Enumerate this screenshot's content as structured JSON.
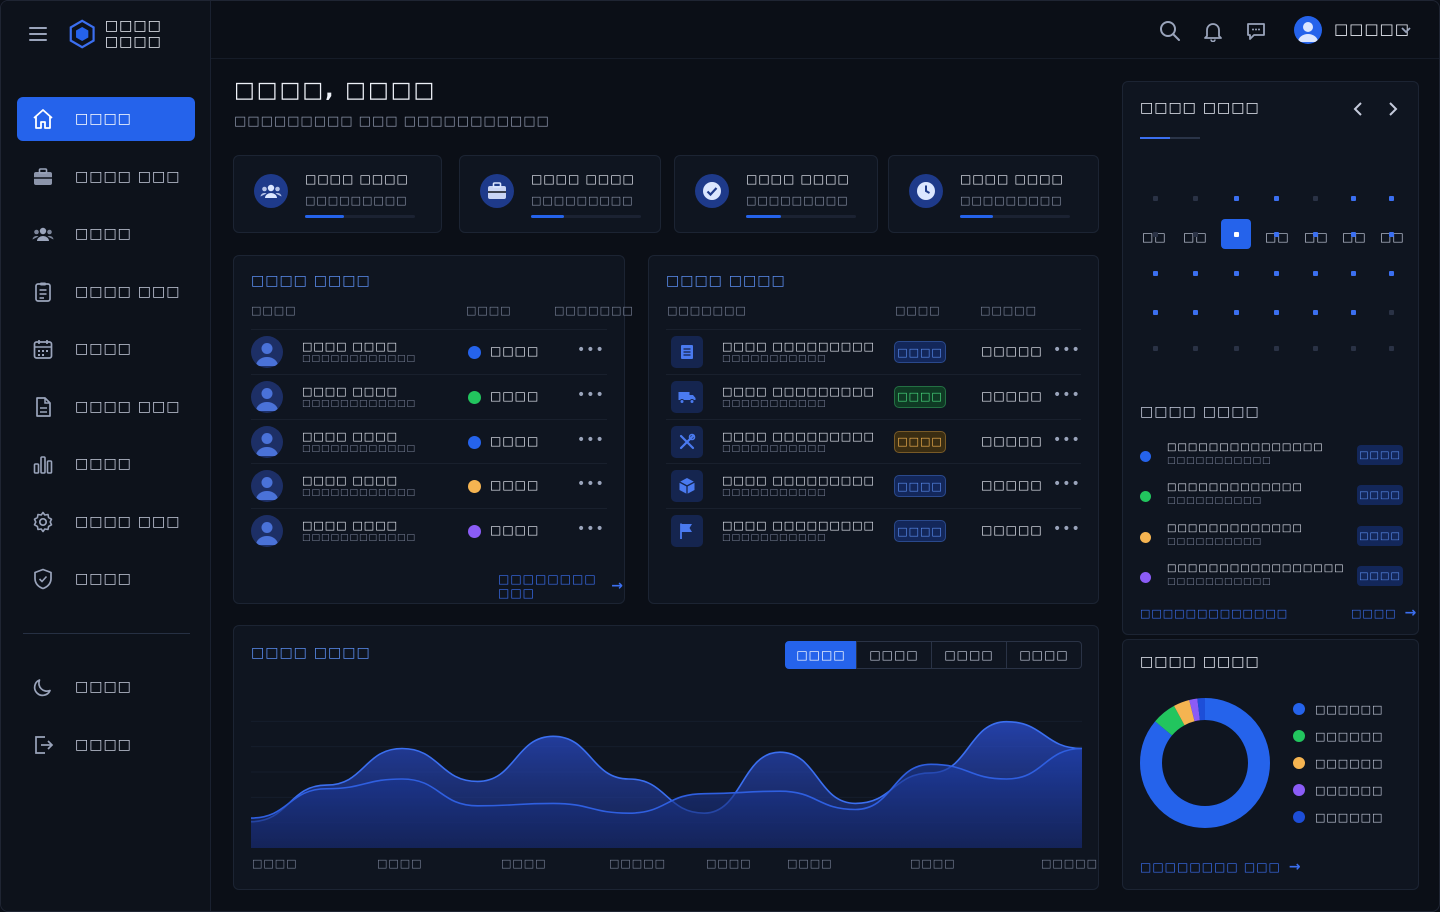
{
  "brand": {
    "name": "□□□□ □□□□"
  },
  "header": {
    "user_name": "□□□□□"
  },
  "nav": {
    "items": [
      {
        "label": "□□□□",
        "icon": "home-icon"
      },
      {
        "label": "□□□□ □□□",
        "icon": "briefcase-icon"
      },
      {
        "label": "□□□□",
        "icon": "users-icon"
      },
      {
        "label": "□□□□ □□□",
        "icon": "clipboard-icon"
      },
      {
        "label": "□□□□",
        "icon": "calendar-icon"
      },
      {
        "label": "□□□□ □□□",
        "icon": "document-icon"
      },
      {
        "label": "□□□□",
        "icon": "bar-chart-icon"
      },
      {
        "label": "□□□□ □□□",
        "icon": "gear-icon"
      },
      {
        "label": "□□□□",
        "icon": "shield-icon"
      }
    ],
    "bottom": [
      {
        "label": "□□□□",
        "icon": "moon-icon"
      },
      {
        "label": "□□□□",
        "icon": "logout-icon"
      }
    ]
  },
  "page": {
    "title": "□□□□, □□□□",
    "subtitle": "□□□□□□□□□ □□□ □□□□□□□□□□□"
  },
  "stats": [
    {
      "title": "□□□□ □□□□",
      "value": "□□□□□□□□□",
      "progress": 0.35,
      "icon": "users-icon"
    },
    {
      "title": "□□□□ □□□□",
      "value": "□□□□□□□□□",
      "progress": 0.3,
      "icon": "briefcase-icon"
    },
    {
      "title": "□□□□ □□□□",
      "value": "□□□□□□□□□",
      "progress": 0.32,
      "icon": "check-circle-icon"
    },
    {
      "title": "□□□□ □□□□",
      "value": "□□□□□□□□□",
      "progress": 0.3,
      "icon": "clock-icon"
    }
  ],
  "team": {
    "title": "□□□□ □□□□",
    "columns": [
      "□□□□",
      "□□□□",
      "□□□□□□□"
    ],
    "rows": [
      {
        "name": "□□□□ □□□□",
        "sub": "□□□□□□□□□□□□",
        "status": "□□□□",
        "status_color": "#2563eb"
      },
      {
        "name": "□□□□ □□□□",
        "sub": "□□□□□□□□□□□□",
        "status": "□□□□",
        "status_color": "#22c55e"
      },
      {
        "name": "□□□□ □□□□",
        "sub": "□□□□□□□□□□□□",
        "status": "□□□□",
        "status_color": "#2563eb"
      },
      {
        "name": "□□□□ □□□□",
        "sub": "□□□□□□□□□□□□",
        "status": "□□□□",
        "status_color": "#f5b451"
      },
      {
        "name": "□□□□ □□□□",
        "sub": "□□□□□□□□□□□□",
        "status": "□□□□",
        "status_color": "#8b5cf6"
      }
    ],
    "more": "•••",
    "link": "□□□□□□□□ □□□"
  },
  "tasks": {
    "title": "□□□□ □□□□",
    "columns": [
      "□□□□□□□",
      "□□□□",
      "□□□□□"
    ],
    "rows": [
      {
        "name": "□□□□ □□□□□□□□□",
        "sub": "□□□□□□□□□□□",
        "badge": "□□□□",
        "badge_color": "#2563eb",
        "value": "□□□□□",
        "icon": "document-icon"
      },
      {
        "name": "□□□□ □□□□□□□□□",
        "sub": "□□□□□□□□□□□",
        "badge": "□□□□",
        "badge_color": "#22c55e",
        "value": "□□□□□",
        "icon": "truck-icon"
      },
      {
        "name": "□□□□ □□□□□□□□□",
        "sub": "□□□□□□□□□□□",
        "badge": "□□□□",
        "badge_color": "#f5b451",
        "value": "□□□□□",
        "icon": "tools-icon"
      },
      {
        "name": "□□□□ □□□□□□□□□",
        "sub": "□□□□□□□□□□□",
        "badge": "□□□□",
        "badge_color": "#2563eb",
        "value": "□□□□□",
        "icon": "box-icon"
      },
      {
        "name": "□□□□ □□□□□□□□□",
        "sub": "□□□□□□□□□□□",
        "badge": "□□□□",
        "badge_color": "#2563eb",
        "value": "□□□□□",
        "icon": "flag-icon"
      }
    ],
    "more": "•••"
  },
  "activity": {
    "title": "□□□□ □□□□",
    "tabs": [
      "□□□□",
      "□□□□",
      "□□□□",
      "□□□□"
    ],
    "active_tab": 0,
    "x_labels": [
      "□□□□",
      "□□□□",
      "□□□□",
      "□□□□□",
      "□□□□",
      "□□□□",
      "□□□□",
      "□□□□□"
    ],
    "chart_data": {
      "type": "area",
      "series": [
        {
          "values": [
            0.15,
            0.45,
            0.75,
            0.48,
            0.85,
            0.5,
            0.22,
            0.72,
            0.3,
            0.55,
            0.97,
            0.75
          ]
        },
        {
          "values": [
            0.18,
            0.42,
            0.5,
            0.28,
            0.3,
            0.22,
            0.38,
            0.4,
            0.25,
            0.62,
            0.5,
            0.75
          ]
        }
      ]
    }
  },
  "calendar": {
    "title": "□□□□ □□□□",
    "weekdays": [
      "□□",
      "□□",
      "□□",
      "□□",
      "□□",
      "□□",
      "□□"
    ],
    "weeks": [
      [
        0,
        0,
        1,
        1,
        0,
        1,
        1
      ],
      [
        0,
        0,
        2,
        1,
        1,
        1,
        1
      ],
      [
        1,
        1,
        1,
        1,
        1,
        1,
        1
      ],
      [
        1,
        1,
        1,
        1,
        1,
        1,
        0
      ],
      [
        0,
        0,
        0,
        0,
        0,
        0,
        0
      ]
    ]
  },
  "events": {
    "title": "□□□□ □□□□",
    "items": [
      {
        "title": "□□□□□□□□□□□□□□□",
        "sub": "□□□□□□□□□□□",
        "badge": "□□□□",
        "color": "#2563eb"
      },
      {
        "title": "□□□□□□□□□□□□□",
        "sub": "□□□□□□□□□□",
        "badge": "□□□□",
        "color": "#22c55e"
      },
      {
        "title": "□□□□□□□□□□□□□",
        "sub": "□□□□□□□□□□",
        "badge": "□□□□",
        "color": "#f5b451"
      },
      {
        "title": "□□□□□□□□□□□□□□□□□",
        "sub": "□□□□□□□□□□□",
        "badge": "□□□□",
        "color": "#8b5cf6"
      }
    ],
    "link_left": "□□□□□□□□□□□□□",
    "link_right": "□□□□"
  },
  "breakdown": {
    "title": "□□□□ □□□□",
    "link": "□□□□□□□□ □□□",
    "chart_data": {
      "type": "pie",
      "labels": [
        "□□□□□□",
        "□□□□□□",
        "□□□□□□",
        "□□□□□□",
        "□□□□□□"
      ],
      "values": [
        0.86,
        0.06,
        0.04,
        0.02,
        0.02
      ],
      "colors": [
        "#2563eb",
        "#22c55e",
        "#f5b451",
        "#8b5cf6",
        "#1d4ed8"
      ]
    }
  }
}
